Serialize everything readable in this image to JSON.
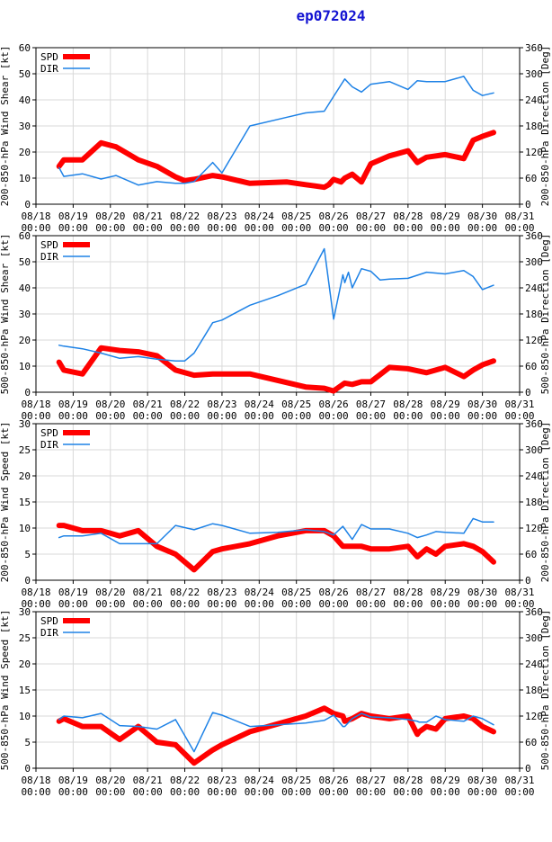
{
  "title": "ep072024",
  "colors": {
    "spd": "#ff0000",
    "dir": "#1e82e6",
    "title": "#1414d2",
    "axis": "#000000",
    "grid": "#d9d9d9"
  },
  "legend": {
    "spd": "SPD",
    "dir": "DIR"
  },
  "x_ticks": [
    {
      "label": "08/18",
      "sub": "00:00",
      "x": 0
    },
    {
      "label": "08/19",
      "sub": "00:00",
      "x": 1
    },
    {
      "label": "08/20",
      "sub": "00:00",
      "x": 2
    },
    {
      "label": "08/21",
      "sub": "00:00",
      "x": 3
    },
    {
      "label": "08/22",
      "sub": "00:00",
      "x": 4
    },
    {
      "label": "08/23",
      "sub": "00:00",
      "x": 5
    },
    {
      "label": "08/24",
      "sub": "00:00",
      "x": 6
    },
    {
      "label": "08/25",
      "sub": "00:00",
      "x": 7
    },
    {
      "label": "08/26",
      "sub": "00:00",
      "x": 8
    },
    {
      "label": "08/27",
      "sub": "00:00",
      "x": 9
    },
    {
      "label": "08/28",
      "sub": "00:00",
      "x": 10
    },
    {
      "label": "08/29",
      "sub": "00:00",
      "x": 11
    },
    {
      "label": "08/30",
      "sub": "00:00",
      "x": 12
    },
    {
      "label": "08/31",
      "sub": "00:00",
      "x": 13
    }
  ],
  "chart_data": [
    {
      "type": "line",
      "ylabel": "200-850-hPa Wind Shear [kt]",
      "y2label": "200-850-hPa Direction [Deg]",
      "xlim": [
        0,
        13
      ],
      "ylim": [
        0,
        60
      ],
      "y2lim": [
        0,
        360
      ],
      "yticks": [
        0,
        10,
        20,
        30,
        40,
        50,
        60
      ],
      "y2ticks": [
        0,
        60,
        120,
        180,
        240,
        300,
        360
      ],
      "series": [
        {
          "name": "SPD",
          "axis": "left",
          "width": 6,
          "x": [
            0.62,
            0.75,
            1.25,
            1.75,
            2.15,
            2.75,
            3.25,
            3.75,
            4.0,
            4.25,
            4.75,
            5.0,
            5.75,
            6.75,
            7.25,
            7.5,
            7.75,
            7.87,
            8.0,
            8.2,
            8.3,
            8.5,
            8.75,
            9.0,
            9.5,
            10.0,
            10.25,
            10.5,
            11.0,
            11.5,
            11.75,
            12.0,
            12.3
          ],
          "y": [
            14.5,
            17,
            17,
            23.5,
            22,
            17,
            14.5,
            10.5,
            9,
            9.5,
            11,
            10.5,
            8,
            8.5,
            7.5,
            7,
            6.5,
            7.5,
            9.5,
            8.5,
            10,
            11.5,
            8.5,
            15.5,
            18.5,
            20.5,
            16,
            18,
            19,
            17.5,
            24.5,
            26,
            27.5
          ]
        },
        {
          "name": "DIR",
          "axis": "right",
          "width": 1.5,
          "x": [
            0.62,
            0.75,
            1.25,
            1.75,
            2.15,
            2.75,
            3.25,
            3.75,
            4.0,
            4.25,
            4.75,
            5.0,
            5.75,
            6.75,
            7.25,
            7.75,
            8.0,
            8.3,
            8.5,
            8.75,
            9.0,
            9.5,
            10.0,
            10.25,
            10.5,
            11.0,
            11.5,
            11.75,
            12.0,
            12.3
          ],
          "y": [
            84,
            64,
            70,
            58,
            66,
            44,
            52,
            48,
            48,
            52,
            96,
            72,
            180,
            200,
            210,
            214,
            248,
            288,
            270,
            258,
            276,
            282,
            264,
            284,
            282,
            282,
            294,
            262,
            250,
            256
          ]
        }
      ]
    },
    {
      "type": "line",
      "ylabel": "500-850-hPa Wind Shear [kt]",
      "y2label": "500-850-hPa Direction [Deg]",
      "xlim": [
        0,
        13
      ],
      "ylim": [
        0,
        60
      ],
      "y2lim": [
        0,
        360
      ],
      "yticks": [
        0,
        10,
        20,
        30,
        40,
        50,
        60
      ],
      "y2ticks": [
        0,
        60,
        120,
        180,
        240,
        300,
        360
      ],
      "series": [
        {
          "name": "SPD",
          "axis": "left",
          "width": 6,
          "x": [
            0.62,
            0.75,
            1.25,
            1.75,
            2.25,
            2.75,
            3.25,
            3.75,
            4.25,
            4.75,
            5.0,
            5.75,
            6.5,
            7.25,
            7.75,
            8.0,
            8.25,
            8.3,
            8.5,
            8.75,
            9.0,
            9.5,
            10.0,
            10.5,
            11.0,
            11.5,
            11.75,
            12.0,
            12.3
          ],
          "y": [
            11.5,
            8.5,
            7,
            17,
            16,
            15.5,
            14,
            8.5,
            6.5,
            7,
            7,
            7,
            4.5,
            2,
            1.5,
            0.5,
            3,
            3.5,
            3,
            4,
            4,
            9.5,
            9,
            7.5,
            9.5,
            6,
            8.5,
            10.5,
            12
          ]
        },
        {
          "name": "DIR",
          "axis": "right",
          "width": 1.5,
          "x": [
            0.62,
            0.75,
            1.25,
            1.75,
            2.25,
            2.75,
            3.25,
            3.75,
            4.0,
            4.25,
            4.75,
            5.0,
            5.75,
            6.5,
            7.25,
            7.75,
            8.0,
            8.25,
            8.3,
            8.4,
            8.5,
            8.75,
            9.0,
            9.25,
            9.5,
            10.0,
            10.5,
            11.0,
            11.5,
            11.75,
            12.0,
            12.3
          ],
          "y": [
            108,
            106,
            100,
            90,
            78,
            82,
            76,
            72,
            72,
            90,
            160,
            166,
            200,
            222,
            248,
            330,
            168,
            270,
            252,
            276,
            240,
            284,
            278,
            258,
            260,
            262,
            276,
            272,
            280,
            266,
            236,
            246
          ]
        }
      ]
    },
    {
      "type": "line",
      "ylabel": "200-850-hPa Wind Speed [kt]",
      "y2label": "200-850-hPa Direction [Deg]",
      "xlim": [
        0,
        13
      ],
      "ylim": [
        0,
        30
      ],
      "y2lim": [
        0,
        360
      ],
      "yticks": [
        0,
        5,
        10,
        15,
        20,
        25,
        30
      ],
      "y2ticks": [
        0,
        60,
        120,
        180,
        240,
        300,
        360
      ],
      "series": [
        {
          "name": "SPD",
          "axis": "left",
          "width": 6,
          "x": [
            0.62,
            0.75,
            1.25,
            1.75,
            2.25,
            2.75,
            3.25,
            3.75,
            4.25,
            4.75,
            5.0,
            5.75,
            6.5,
            7.25,
            7.75,
            8.0,
            8.25,
            8.5,
            8.75,
            9.0,
            9.5,
            10.0,
            10.25,
            10.5,
            10.75,
            11.0,
            11.5,
            11.75,
            12.0,
            12.3
          ],
          "y": [
            10.5,
            10.5,
            9.5,
            9.5,
            8.5,
            9.5,
            6.5,
            5,
            2,
            5.5,
            6,
            7,
            8.5,
            9.5,
            9.5,
            8.5,
            6.5,
            6.5,
            6.5,
            6,
            6,
            6.5,
            4.5,
            6,
            5,
            6.5,
            7,
            6.5,
            5.5,
            3.5
          ]
        },
        {
          "name": "DIR",
          "axis": "right",
          "width": 1.5,
          "x": [
            0.62,
            0.75,
            1.25,
            1.75,
            2.25,
            2.75,
            3.25,
            3.75,
            4.25,
            4.75,
            5.0,
            5.75,
            6.5,
            7.25,
            7.75,
            8.0,
            8.25,
            8.5,
            8.75,
            9.0,
            9.5,
            10.0,
            10.25,
            10.5,
            10.75,
            11.0,
            11.5,
            11.75,
            12.0,
            12.3
          ],
          "y": [
            98,
            102,
            102,
            108,
            84,
            84,
            84,
            126,
            116,
            130,
            126,
            108,
            110,
            116,
            112,
            104,
            124,
            94,
            128,
            118,
            118,
            108,
            98,
            104,
            112,
            110,
            108,
            142,
            134,
            134
          ]
        }
      ]
    },
    {
      "type": "line",
      "ylabel": "500-850-hPa Wind Speed [kt]",
      "y2label": "500-850-hPa Direction [Deg]",
      "xlim": [
        0,
        13
      ],
      "ylim": [
        0,
        30
      ],
      "y2lim": [
        0,
        360
      ],
      "yticks": [
        0,
        5,
        10,
        15,
        20,
        25,
        30
      ],
      "y2ticks": [
        0,
        60,
        120,
        180,
        240,
        300,
        360
      ],
      "series": [
        {
          "name": "SPD",
          "axis": "left",
          "width": 6,
          "x": [
            0.62,
            0.75,
            1.25,
            1.75,
            2.25,
            2.75,
            3.25,
            3.75,
            4.25,
            4.75,
            5.0,
            5.75,
            6.5,
            7.25,
            7.75,
            8.0,
            8.25,
            8.3,
            8.5,
            8.75,
            9.0,
            9.5,
            10.0,
            10.25,
            10.3,
            10.5,
            10.75,
            11.0,
            11.5,
            11.75,
            12.0,
            12.3
          ],
          "y": [
            9,
            9.5,
            8,
            8,
            5.5,
            8,
            5,
            4.5,
            1,
            3.5,
            4.5,
            7,
            8.5,
            10,
            11.5,
            10.5,
            10,
            9,
            9.5,
            10.5,
            10,
            9.5,
            10,
            6.5,
            7,
            8,
            7.5,
            9.5,
            10,
            9.5,
            8,
            7
          ]
        },
        {
          "name": "DIR",
          "axis": "right",
          "width": 1.5,
          "x": [
            0.62,
            0.75,
            1.25,
            1.75,
            2.25,
            2.75,
            3.25,
            3.75,
            4.25,
            4.75,
            5.0,
            5.75,
            6.5,
            7.25,
            7.75,
            8.0,
            8.25,
            8.3,
            8.5,
            8.75,
            9.0,
            9.5,
            10.0,
            10.25,
            10.3,
            10.5,
            10.75,
            11.0,
            11.5,
            11.75,
            12.0,
            12.3
          ],
          "y": [
            112,
            120,
            116,
            126,
            98,
            96,
            90,
            112,
            38,
            128,
            122,
            96,
            100,
            104,
            110,
            122,
            96,
            96,
            114,
            126,
            118,
            116,
            112,
            108,
            106,
            106,
            120,
            112,
            108,
            120,
            114,
            100
          ]
        }
      ]
    }
  ]
}
